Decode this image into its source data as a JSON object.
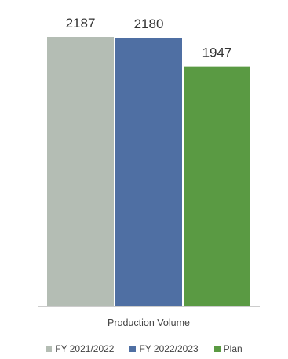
{
  "chart_data": {
    "type": "bar",
    "title": "",
    "xlabel": "",
    "ylabel": "",
    "categories": [
      "Production Volume"
    ],
    "series": [
      {
        "name": "FY 2021/2022",
        "values": [
          2187
        ],
        "color": "#b4bdb4"
      },
      {
        "name": "FY 2022/2023",
        "values": [
          2180
        ],
        "color": "#4f6fa3"
      },
      {
        "name": "Plan",
        "values": [
          1947
        ],
        "color": "#5a9a43"
      }
    ],
    "ylim": [
      0,
      2187
    ],
    "grid": false,
    "data_labels": true,
    "legend_position": "bottom"
  }
}
